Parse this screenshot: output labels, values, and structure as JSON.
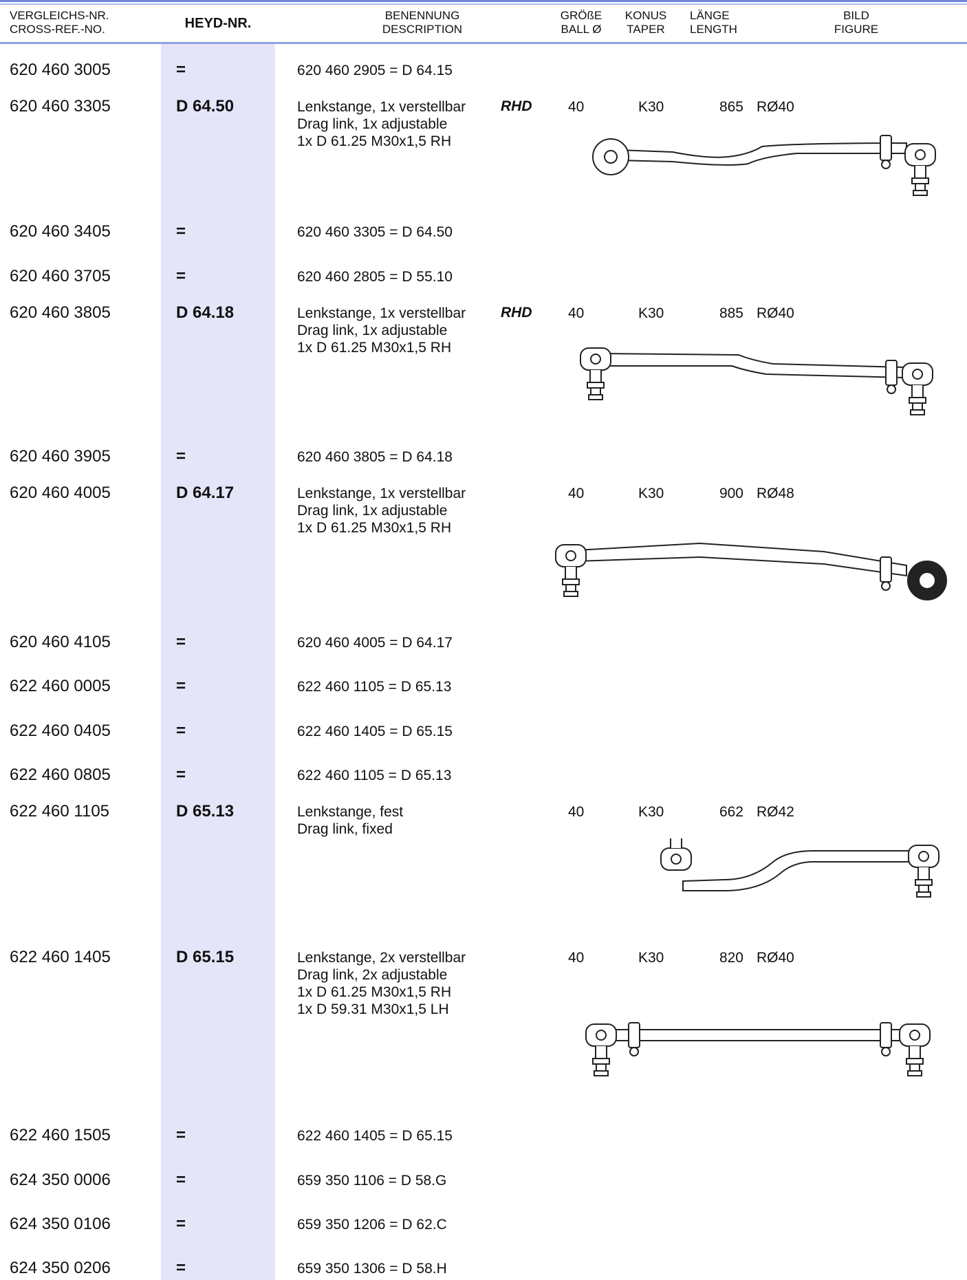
{
  "header": {
    "cross_ref": [
      "VERGLEICHS-NR.",
      "CROSS-REF.-NO."
    ],
    "heyd": "HEYD-NR.",
    "description": [
      "BENENNUNG",
      "DESCRIPTION"
    ],
    "ball": [
      "GRÖßE",
      "BALL Ø"
    ],
    "taper": [
      "KONUS",
      "TAPER"
    ],
    "length": [
      "LÄNGE",
      "LENGTH"
    ],
    "figure": [
      "BILD",
      "FIGURE"
    ]
  },
  "rows": [
    {
      "cross_ref": "620 460 3005",
      "heyd": "=",
      "description": [
        "620 460 2905 = D 64.15"
      ]
    },
    {
      "cross_ref": "620 460 3305",
      "heyd": "D 64.50",
      "description": [
        "Lenkstange, 1x verstellbar",
        "Drag link, 1x adjustable",
        "1x D 61.25 M30x1,5 RH"
      ],
      "side": "RHD",
      "ball": "40",
      "taper": "K30",
      "length": "865",
      "rod": "RØ40"
    },
    {
      "cross_ref": "620 460 3405",
      "heyd": "=",
      "description": [
        "620 460 3305 = D 64.50"
      ]
    },
    {
      "cross_ref": "620 460 3705",
      "heyd": "=",
      "description": [
        "620 460 2805 = D 55.10"
      ]
    },
    {
      "cross_ref": "620 460 3805",
      "heyd": "D 64.18",
      "description": [
        "Lenkstange, 1x verstellbar",
        "Drag link, 1x adjustable",
        "1x D 61.25 M30x1,5 RH"
      ],
      "side": "RHD",
      "ball": "40",
      "taper": "K30",
      "length": "885",
      "rod": "RØ40"
    },
    {
      "cross_ref": "620 460 3905",
      "heyd": "=",
      "description": [
        "620 460 3805 = D 64.18"
      ]
    },
    {
      "cross_ref": "620 460 4005",
      "heyd": "D 64.17",
      "description": [
        "Lenkstange, 1x verstellbar",
        "Drag link, 1x adjustable",
        "1x D 61.25 M30x1,5 RH"
      ],
      "ball": "40",
      "taper": "K30",
      "length": "900",
      "rod": "RØ48"
    },
    {
      "cross_ref": "620 460 4105",
      "heyd": "=",
      "description": [
        "620 460 4005 = D 64.17"
      ]
    },
    {
      "cross_ref": "622 460 0005",
      "heyd": "=",
      "description": [
        "622 460 1105 = D 65.13"
      ]
    },
    {
      "cross_ref": "622 460 0405",
      "heyd": "=",
      "description": [
        "622 460 1405 = D 65.15"
      ]
    },
    {
      "cross_ref": "622 460 0805",
      "heyd": "=",
      "description": [
        "622 460 1105 = D 65.13"
      ]
    },
    {
      "cross_ref": "622 460 1105",
      "heyd": "D 65.13",
      "description": [
        "Lenkstange, fest",
        "Drag link, fixed"
      ],
      "ball": "40",
      "taper": "K30",
      "length": "662",
      "rod": "RØ42"
    },
    {
      "cross_ref": "622 460 1405",
      "heyd": "D 65.15",
      "description": [
        "Lenkstange, 2x verstellbar",
        "Drag link, 2x adjustable",
        "1x D 61.25 M30x1,5 RH",
        "1x D 59.31 M30x1,5 LH"
      ],
      "ball": "40",
      "taper": "K30",
      "length": "820",
      "rod": "RØ40"
    },
    {
      "cross_ref": "622 460 1505",
      "heyd": "=",
      "description": [
        "622 460 1405 = D 65.15"
      ]
    },
    {
      "cross_ref": "624 350 0006",
      "heyd": "=",
      "description": [
        "659 350 1106 = D 58.G"
      ]
    },
    {
      "cross_ref": "624 350 0106",
      "heyd": "=",
      "description": [
        "659 350 1206 = D 62.C"
      ]
    },
    {
      "cross_ref": "624 350 0206",
      "heyd": "=",
      "description": [
        "659 350 1306 = D 58.H"
      ]
    }
  ]
}
